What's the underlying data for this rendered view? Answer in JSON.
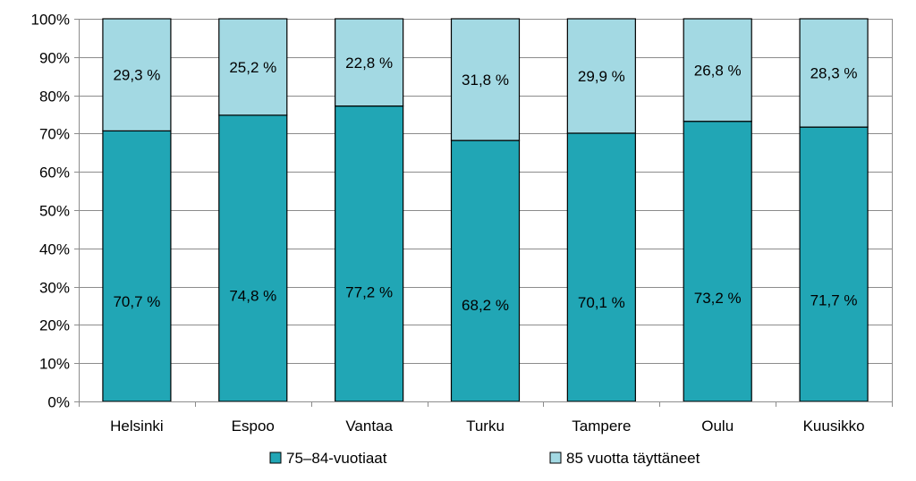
{
  "chart_data": {
    "type": "bar",
    "stacked": true,
    "categories": [
      "Helsinki",
      "Espoo",
      "Vantaa",
      "Turku",
      "Tampere",
      "Oulu",
      "Kuusikko"
    ],
    "series": [
      {
        "name": "75–84-vuotiaat",
        "color": "#21a6b5",
        "values": [
          70.7,
          74.8,
          77.2,
          68.2,
          70.1,
          73.2,
          71.7
        ],
        "labels": [
          "70,7 %",
          "74,8 %",
          "77,2 %",
          "68,2 %",
          "70,1 %",
          "73,2 %",
          "71,7 %"
        ]
      },
      {
        "name": "85 vuotta täyttäneet",
        "color": "#a3d9e3",
        "values": [
          29.3,
          25.2,
          22.8,
          31.8,
          29.9,
          26.8,
          28.3
        ],
        "labels": [
          "29,3 %",
          "25,2 %",
          "22,8 %",
          "31,8 %",
          "29,9 %",
          "26,8 %",
          "28,3 %"
        ]
      }
    ],
    "ylim": [
      0,
      100
    ],
    "yticks": [
      "0%",
      "10%",
      "20%",
      "30%",
      "40%",
      "50%",
      "60%",
      "70%",
      "80%",
      "90%",
      "100%"
    ],
    "grid": true,
    "legend_position": "bottom"
  }
}
